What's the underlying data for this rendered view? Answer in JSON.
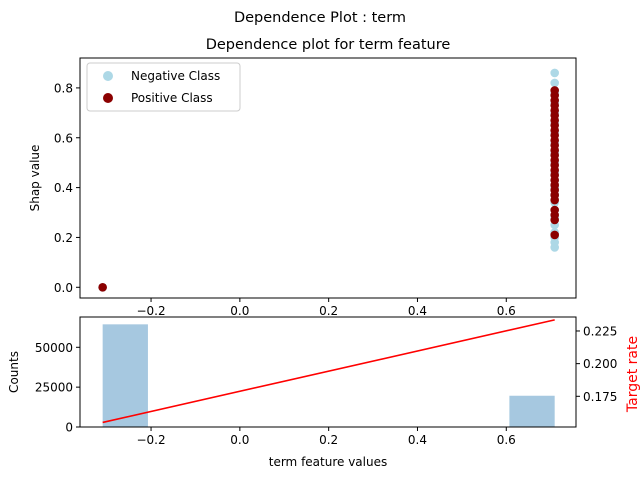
{
  "figure": {
    "suptitle": "Dependence Plot : term"
  },
  "chart_data": [
    {
      "type": "scatter",
      "title": "Dependence plot for term feature",
      "xlabel": "",
      "ylabel": "Shap value",
      "xlim": [
        -0.36,
        0.757
      ],
      "ylim": [
        -0.043,
        0.92
      ],
      "x_ticks": [
        -0.2,
        0.0,
        0.2,
        0.4,
        0.6
      ],
      "x_tick_labels": [
        "−0.2",
        "0.0",
        "0.2",
        "0.4",
        "0.6"
      ],
      "y_ticks": [
        0.0,
        0.2,
        0.4,
        0.6,
        0.8
      ],
      "y_tick_labels": [
        "0.0",
        "0.2",
        "0.4",
        "0.6",
        "0.8"
      ],
      "legend": {
        "placement": "top-left"
      },
      "series": [
        {
          "name": "Negative Class",
          "color": "#add8e6",
          "points": [
            [
              -0.309,
              0.0
            ],
            [
              0.709,
              0.16
            ],
            [
              0.709,
              0.18
            ],
            [
              0.709,
              0.2
            ],
            [
              0.709,
              0.22
            ],
            [
              0.709,
              0.25
            ],
            [
              0.709,
              0.28
            ],
            [
              0.709,
              0.31
            ],
            [
              0.709,
              0.34
            ],
            [
              0.709,
              0.37
            ],
            [
              0.709,
              0.4
            ],
            [
              0.709,
              0.43
            ],
            [
              0.709,
              0.46
            ],
            [
              0.709,
              0.5
            ],
            [
              0.709,
              0.54
            ],
            [
              0.709,
              0.58
            ],
            [
              0.709,
              0.62
            ],
            [
              0.709,
              0.66
            ],
            [
              0.709,
              0.7
            ],
            [
              0.709,
              0.74
            ],
            [
              0.709,
              0.78
            ],
            [
              0.709,
              0.82
            ],
            [
              0.709,
              0.86
            ]
          ]
        },
        {
          "name": "Positive Class",
          "color": "#8b0000",
          "points": [
            [
              -0.309,
              0.0
            ],
            [
              0.709,
              0.21
            ],
            [
              0.709,
              0.27
            ],
            [
              0.709,
              0.29
            ],
            [
              0.709,
              0.31
            ],
            [
              0.709,
              0.35
            ],
            [
              0.709,
              0.37
            ],
            [
              0.709,
              0.39
            ],
            [
              0.709,
              0.41
            ],
            [
              0.709,
              0.43
            ],
            [
              0.709,
              0.45
            ],
            [
              0.709,
              0.47
            ],
            [
              0.709,
              0.49
            ],
            [
              0.709,
              0.51
            ],
            [
              0.709,
              0.53
            ],
            [
              0.709,
              0.55
            ],
            [
              0.709,
              0.57
            ],
            [
              0.709,
              0.59
            ],
            [
              0.709,
              0.61
            ],
            [
              0.709,
              0.63
            ],
            [
              0.709,
              0.65
            ],
            [
              0.709,
              0.67
            ],
            [
              0.709,
              0.69
            ],
            [
              0.709,
              0.71
            ],
            [
              0.709,
              0.73
            ],
            [
              0.709,
              0.75
            ],
            [
              0.709,
              0.77
            ],
            [
              0.709,
              0.79
            ]
          ]
        }
      ]
    },
    {
      "type": "bar",
      "title": "",
      "xlabel": "term feature values",
      "ylabel": "Counts",
      "y2label": "Target rate",
      "xlim": [
        -0.36,
        0.757
      ],
      "ylim": [
        0,
        69000
      ],
      "y2lim": [
        0.1515,
        0.2357
      ],
      "x_ticks": [
        -0.2,
        0.0,
        0.2,
        0.4,
        0.6
      ],
      "x_tick_labels": [
        "−0.2",
        "0.0",
        "0.2",
        "0.4",
        "0.6"
      ],
      "y_ticks": [
        0,
        25000,
        50000
      ],
      "y_tick_labels": [
        "0",
        "25000",
        "50000"
      ],
      "y2_ticks": [
        0.175,
        0.2,
        0.225
      ],
      "y2_tick_labels": [
        "0.175",
        "0.200",
        "0.225"
      ],
      "bars": [
        {
          "x0": -0.309,
          "x1": -0.207,
          "value": 64400
        },
        {
          "x0": 0.607,
          "x1": 0.709,
          "value": 19600
        }
      ],
      "bar_color": "#a6c8e0",
      "target_rate_line": {
        "color": "#ff0000",
        "points": [
          [
            -0.309,
            0.155
          ],
          [
            0.709,
            0.2335
          ]
        ]
      }
    }
  ]
}
